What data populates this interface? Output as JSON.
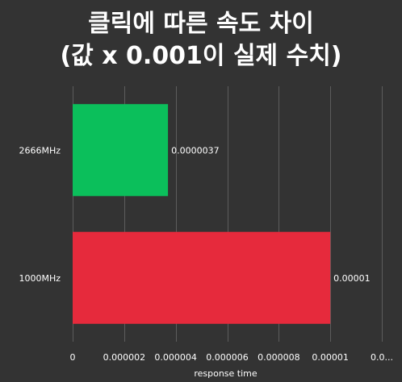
{
  "chart_data": {
    "type": "bar",
    "orientation": "horizontal",
    "title_lines": [
      "클릭에 따른 속도 차이",
      "(값 x 0.001이 실제 수치)"
    ],
    "xlabel": "response time",
    "ylabel": "",
    "categories": [
      "2666MHz",
      "1000MHz"
    ],
    "values": [
      3.7e-06,
      1e-05
    ],
    "data_labels": [
      "0.0000037",
      "0.00001"
    ],
    "bar_colors": [
      "#0bbf5b",
      "#e62a3c"
    ],
    "xlim": [
      0,
      1.2e-05
    ],
    "x_ticks": [
      0,
      2e-06,
      4e-06,
      6e-06,
      8e-06,
      1e-05,
      1.2e-05
    ],
    "x_tick_labels": [
      "0",
      "0.000002",
      "0.000004",
      "0.000006",
      "0.000008",
      "0.00001",
      "0.0..."
    ],
    "grid": true,
    "legend": "none"
  }
}
